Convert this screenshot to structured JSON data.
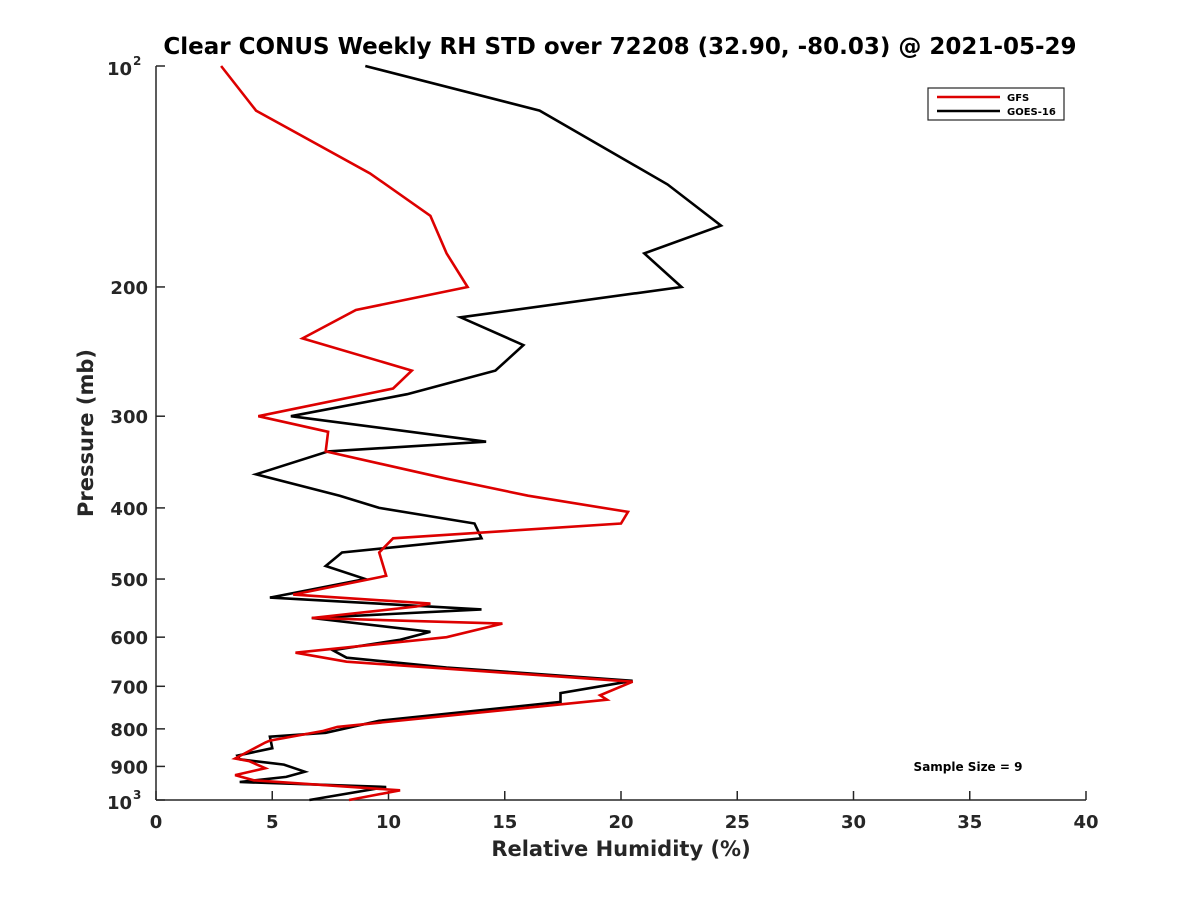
{
  "chart_data": {
    "type": "line",
    "title": "Clear CONUS Weekly RH STD over 72208 (32.90, -80.03) @ 2021-05-29",
    "xlabel": "Relative Humidity (%)",
    "ylabel": "Pressure (mb)",
    "xlim": [
      0,
      40
    ],
    "ylim": [
      100,
      1000
    ],
    "y_scale": "log",
    "y_reversed": true,
    "grid": false,
    "legend_position": "top-right",
    "x_ticks": [
      "0",
      "5",
      "10",
      "15",
      "20",
      "25",
      "30",
      "35",
      "40"
    ],
    "y_ticks": [
      {
        "value": 100,
        "base": "10",
        "exp": "2"
      },
      {
        "value": 200,
        "label": "200"
      },
      {
        "value": 300,
        "label": "300"
      },
      {
        "value": 400,
        "label": "400"
      },
      {
        "value": 500,
        "label": "500"
      },
      {
        "value": 600,
        "label": "600"
      },
      {
        "value": 700,
        "label": "700"
      },
      {
        "value": 800,
        "label": "800"
      },
      {
        "value": 900,
        "label": "900"
      },
      {
        "value": 1000,
        "base": "10",
        "exp": "3"
      }
    ],
    "annotation": "Sample Size = 9",
    "series": [
      {
        "name": "GFS",
        "color": "#dd0000",
        "points": [
          [
            2.8,
            100
          ],
          [
            4.3,
            115
          ],
          [
            9.2,
            140
          ],
          [
            11.8,
            160
          ],
          [
            12.5,
            180
          ],
          [
            13.4,
            200
          ],
          [
            8.6,
            215
          ],
          [
            6.3,
            235
          ],
          [
            11.0,
            260
          ],
          [
            10.2,
            275
          ],
          [
            4.4,
            300
          ],
          [
            7.4,
            315
          ],
          [
            7.3,
            335
          ],
          [
            12.5,
            365
          ],
          [
            16.0,
            385
          ],
          [
            20.3,
            405
          ],
          [
            20.0,
            420
          ],
          [
            10.2,
            440
          ],
          [
            9.6,
            460
          ],
          [
            9.9,
            495
          ],
          [
            5.9,
            525
          ],
          [
            11.8,
            540
          ],
          [
            11.2,
            545
          ],
          [
            6.7,
            565
          ],
          [
            14.9,
            575
          ],
          [
            12.5,
            600
          ],
          [
            6.0,
            630
          ],
          [
            8.2,
            648
          ],
          [
            20.5,
            690
          ],
          [
            19.1,
            720
          ],
          [
            19.4,
            730
          ],
          [
            7.8,
            795
          ],
          [
            7.2,
            805
          ],
          [
            4.9,
            830
          ],
          [
            4.7,
            835
          ],
          [
            3.4,
            878
          ],
          [
            4.0,
            885
          ],
          [
            4.7,
            905
          ],
          [
            3.4,
            925
          ],
          [
            4.2,
            940
          ],
          [
            10.5,
            970
          ],
          [
            8.3,
            1000
          ]
        ]
      },
      {
        "name": "GOES-16",
        "color": "#000000",
        "points": [
          [
            9.0,
            100
          ],
          [
            16.5,
            115
          ],
          [
            22.0,
            145
          ],
          [
            24.3,
            165
          ],
          [
            21.0,
            180
          ],
          [
            22.6,
            200
          ],
          [
            13.1,
            220
          ],
          [
            15.8,
            240
          ],
          [
            14.6,
            260
          ],
          [
            10.8,
            280
          ],
          [
            5.8,
            300
          ],
          [
            14.2,
            325
          ],
          [
            7.4,
            335
          ],
          [
            4.3,
            360
          ],
          [
            7.9,
            385
          ],
          [
            9.6,
            400
          ],
          [
            13.7,
            420
          ],
          [
            14.0,
            440
          ],
          [
            8.0,
            460
          ],
          [
            7.3,
            480
          ],
          [
            9.0,
            500
          ],
          [
            4.9,
            530
          ],
          [
            14.0,
            550
          ],
          [
            6.7,
            565
          ],
          [
            11.8,
            590
          ],
          [
            10.5,
            605
          ],
          [
            7.6,
            625
          ],
          [
            8.2,
            640
          ],
          [
            12.5,
            660
          ],
          [
            20.5,
            688
          ],
          [
            17.4,
            715
          ],
          [
            17.4,
            735
          ],
          [
            9.6,
            780
          ],
          [
            7.3,
            810
          ],
          [
            4.9,
            820
          ],
          [
            5.0,
            850
          ],
          [
            3.5,
            870
          ],
          [
            3.6,
            880
          ],
          [
            5.5,
            895
          ],
          [
            6.4,
            915
          ],
          [
            5.6,
            930
          ],
          [
            3.6,
            945
          ],
          [
            9.9,
            960
          ],
          [
            6.6,
            1000
          ]
        ]
      }
    ]
  }
}
